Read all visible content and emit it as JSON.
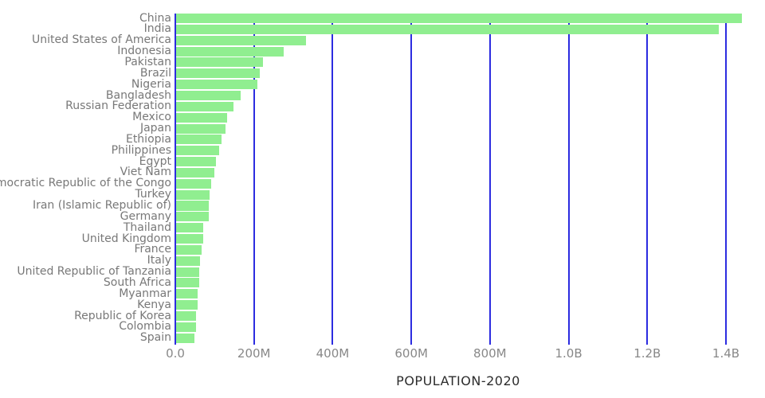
{
  "chart_data": {
    "type": "bar",
    "orientation": "horizontal",
    "title": "",
    "xlabel": "POPULATION-2020",
    "ylabel": "",
    "unit": "millions",
    "grid": true,
    "legend": false,
    "xlim_millions": [
      0,
      1500
    ],
    "categories": [
      "China",
      "India",
      "United States of America",
      "Indonesia",
      "Pakistan",
      "Brazil",
      "Nigeria",
      "Bangladesh",
      "Russian Federation",
      "Mexico",
      "Japan",
      "Ethiopia",
      "Philippines",
      "Egypt",
      "Viet Nam",
      "Democratic Republic of the Congo",
      "Turkey",
      "Iran (Islamic Republic of)",
      "Germany",
      "Thailand",
      "United Kingdom",
      "France",
      "Italy",
      "United Republic of Tanzania",
      "South Africa",
      "Myanmar",
      "Kenya",
      "Republic of Korea",
      "Colombia",
      "Spain"
    ],
    "values": [
      1439.3,
      1380.0,
      331.0,
      273.5,
      220.9,
      212.6,
      206.1,
      164.7,
      145.9,
      128.9,
      126.5,
      115.0,
      109.6,
      102.3,
      97.3,
      89.6,
      84.3,
      84.0,
      83.8,
      69.8,
      67.9,
      65.3,
      60.5,
      59.7,
      59.3,
      54.4,
      53.8,
      51.3,
      50.9,
      46.8
    ],
    "x_ticks": [
      {
        "value": 0,
        "label": "0.0"
      },
      {
        "value": 200,
        "label": "200M"
      },
      {
        "value": 400,
        "label": "400M"
      },
      {
        "value": 600,
        "label": "600M"
      },
      {
        "value": 800,
        "label": "800M"
      },
      {
        "value": 1000,
        "label": "1.0B"
      },
      {
        "value": 1200,
        "label": "1.2B"
      },
      {
        "value": 1400,
        "label": "1.4B"
      }
    ],
    "colors": {
      "bar": "#90ee90",
      "gridline": "#2c2ce0",
      "category_label": "#787878",
      "tick_label": "#888888",
      "axis_title": "#2d2d2d",
      "background": "#ffffff"
    }
  }
}
